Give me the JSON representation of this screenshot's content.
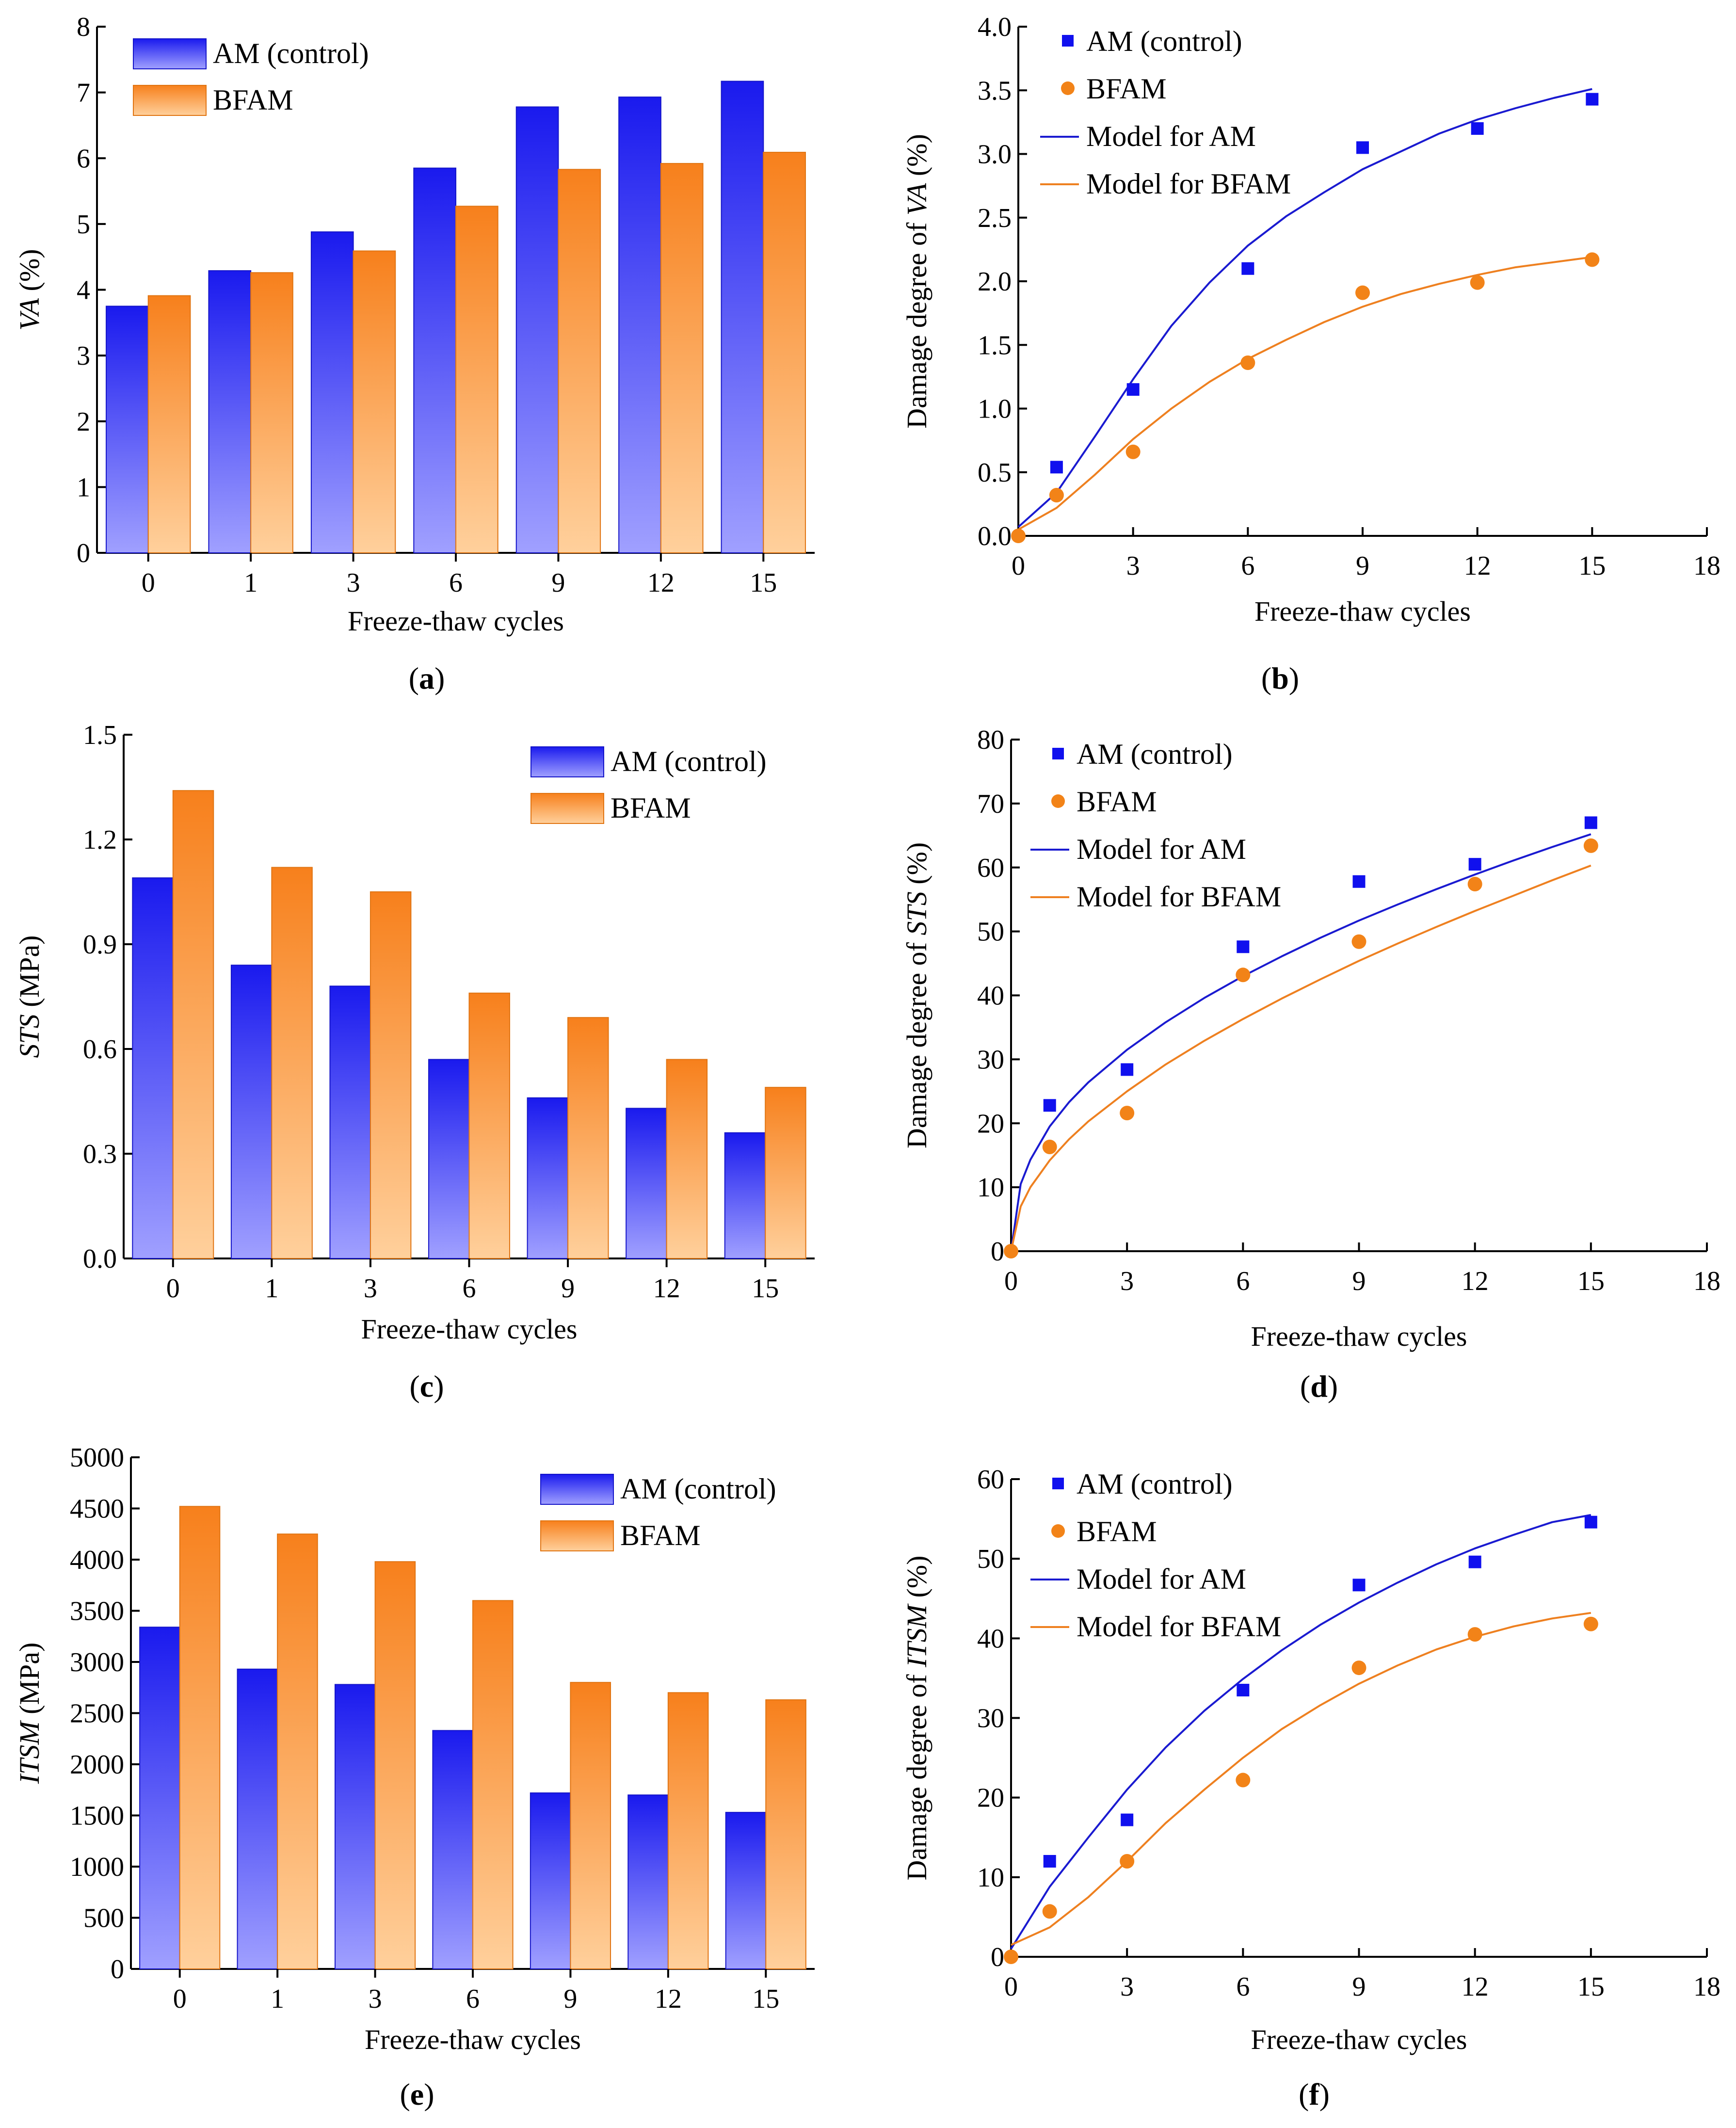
{
  "colors": {
    "am_top": "#1a1aee",
    "am_bottom": "#a0a0ff",
    "bfam_top": "#f7801c",
    "bfam_bottom": "#ffd09c",
    "am_marker": "#1010ee",
    "bfam_marker": "#f28318",
    "am_line": "#1a1ad0",
    "bfam_line": "#ee8020"
  },
  "chart_data": [
    {
      "id": "a",
      "type": "bar",
      "caption": "a",
      "categories": [
        "0",
        "1",
        "3",
        "6",
        "9",
        "12",
        "15"
      ],
      "series": [
        {
          "name": "AM (control)",
          "values": [
            3.75,
            4.29,
            4.88,
            5.85,
            6.78,
            6.93,
            7.17
          ]
        },
        {
          "name": "BFAM",
          "values": [
            3.91,
            4.26,
            4.59,
            5.27,
            5.83,
            5.92,
            6.09
          ]
        }
      ],
      "xlabel": "Freeze-thaw cycles",
      "ylabel_italic": "VA",
      "ylabel_rest": " (%)",
      "ylim": [
        0,
        8
      ],
      "yticks": [
        "0",
        "1",
        "2",
        "3",
        "4",
        "5",
        "6",
        "7",
        "8"
      ],
      "legend": "top-left"
    },
    {
      "id": "b",
      "type": "scatter",
      "caption": "b",
      "series": [
        {
          "name": "AM (control)",
          "x": [
            1,
            3,
            6,
            9,
            12,
            15
          ],
          "y": [
            0.54,
            1.15,
            2.1,
            3.05,
            3.2,
            3.43
          ]
        },
        {
          "name": "BFAM",
          "x": [
            0,
            1,
            3,
            6,
            9,
            12,
            15
          ],
          "y": [
            0.0,
            0.32,
            0.66,
            1.36,
            1.91,
            1.99,
            2.17
          ]
        }
      ],
      "models": [
        {
          "name": "Model for AM",
          "x": [
            0,
            1,
            2,
            3,
            4,
            5,
            6,
            7,
            8,
            9,
            10,
            11,
            12,
            13,
            14,
            15
          ],
          "y": [
            0.07,
            0.34,
            0.78,
            1.23,
            1.65,
            1.99,
            2.28,
            2.51,
            2.7,
            2.88,
            3.02,
            3.16,
            3.27,
            3.36,
            3.44,
            3.51
          ]
        },
        {
          "name": "Model for BFAM",
          "x": [
            0,
            1,
            2,
            3,
            4,
            5,
            6,
            7,
            8,
            9,
            10,
            11,
            12,
            13,
            14,
            15
          ],
          "y": [
            0.05,
            0.22,
            0.48,
            0.76,
            1.0,
            1.21,
            1.39,
            1.54,
            1.68,
            1.8,
            1.9,
            1.98,
            2.05,
            2.11,
            2.15,
            2.19
          ]
        }
      ],
      "xlabel": "Freeze-thaw cycles",
      "ylabel_prefix": "Damage degree of ",
      "ylabel_italic": "VA",
      "ylabel_rest": " (%)",
      "xlim": [
        0,
        18
      ],
      "xticks": [
        "0",
        "3",
        "6",
        "9",
        "12",
        "15",
        "18"
      ],
      "ylim": [
        0,
        4
      ],
      "yticks": [
        "0.0",
        "0.5",
        "1.0",
        "1.5",
        "2.0",
        "2.5",
        "3.0",
        "3.5",
        "4.0"
      ],
      "legend": "top-left"
    },
    {
      "id": "c",
      "type": "bar",
      "caption": "c",
      "categories": [
        "0",
        "1",
        "3",
        "6",
        "9",
        "12",
        "15"
      ],
      "series": [
        {
          "name": "AM (control)",
          "values": [
            1.09,
            0.84,
            0.78,
            0.57,
            0.46,
            0.43,
            0.36
          ]
        },
        {
          "name": "BFAM",
          "values": [
            1.34,
            1.12,
            1.05,
            0.76,
            0.69,
            0.57,
            0.49
          ]
        }
      ],
      "xlabel": "Freeze-thaw cycles",
      "ylabel_italic": "STS",
      "ylabel_rest": " (MPa)",
      "ylim": [
        0,
        1.5
      ],
      "yticks": [
        "0.0",
        "0.3",
        "0.6",
        "0.9",
        "1.2",
        "1.5"
      ],
      "legend": "top-right"
    },
    {
      "id": "d",
      "type": "scatter",
      "caption": "d",
      "series": [
        {
          "name": "AM (control)",
          "x": [
            1,
            3,
            6,
            9,
            12,
            15
          ],
          "y": [
            22.8,
            28.4,
            47.6,
            57.8,
            60.5,
            67.0
          ]
        },
        {
          "name": "BFAM",
          "x": [
            0,
            1,
            3,
            6,
            9,
            12,
            15
          ],
          "y": [
            0.0,
            16.3,
            21.6,
            43.2,
            48.4,
            57.4,
            63.4
          ]
        }
      ],
      "models": [
        {
          "name": "Model for AM",
          "x": [
            0,
            0.25,
            0.5,
            1,
            1.5,
            2,
            3,
            4,
            5,
            6,
            7,
            8,
            9,
            10,
            11,
            12,
            13,
            14,
            15
          ],
          "y": [
            0,
            10.5,
            14.3,
            19.5,
            23.3,
            26.4,
            31.5,
            35.8,
            39.6,
            43.0,
            46.1,
            49.0,
            51.7,
            54.2,
            56.6,
            58.9,
            61.1,
            63.2,
            65.2
          ]
        },
        {
          "name": "Model for BFAM",
          "x": [
            0,
            0.25,
            0.5,
            1,
            1.5,
            2,
            3,
            4,
            5,
            6,
            7,
            8,
            9,
            10,
            11,
            12,
            13,
            14,
            15
          ],
          "y": [
            0,
            7.0,
            10.0,
            14.2,
            17.5,
            20.3,
            25.0,
            29.2,
            32.9,
            36.3,
            39.5,
            42.5,
            45.4,
            48.1,
            50.7,
            53.2,
            55.6,
            58.0,
            60.3
          ]
        }
      ],
      "xlabel": "Freeze-thaw cycles",
      "ylabel_prefix": "Damage degree of ",
      "ylabel_italic": "STS",
      "ylabel_rest": " (%)",
      "xlim": [
        0,
        18
      ],
      "xticks": [
        "0",
        "3",
        "6",
        "9",
        "12",
        "15",
        "18"
      ],
      "ylim": [
        0,
        80
      ],
      "yticks": [
        "0",
        "10",
        "20",
        "30",
        "40",
        "50",
        "60",
        "70",
        "80"
      ],
      "legend": "top-left"
    },
    {
      "id": "e",
      "type": "bar",
      "caption": "e",
      "categories": [
        "0",
        "1",
        "3",
        "6",
        "9",
        "12",
        "15"
      ],
      "series": [
        {
          "name": "AM (control)",
          "values": [
            3340,
            2930,
            2780,
            2330,
            1720,
            1700,
            1530
          ]
        },
        {
          "name": "BFAM",
          "values": [
            4520,
            4250,
            3980,
            3600,
            2800,
            2700,
            2630
          ]
        }
      ],
      "xlabel": "Freeze-thaw cycles",
      "ylabel_italic": "ITSM",
      "ylabel_rest": " (MPa)",
      "ylim": [
        0,
        5000
      ],
      "yticks": [
        "0",
        "500",
        "1000",
        "1500",
        "2000",
        "2500",
        "3000",
        "3500",
        "4000",
        "4500",
        "5000"
      ],
      "legend": "top-right"
    },
    {
      "id": "f",
      "type": "scatter",
      "caption": "f",
      "series": [
        {
          "name": "AM (control)",
          "x": [
            1,
            3,
            6,
            9,
            12,
            15
          ],
          "y": [
            12.0,
            17.2,
            33.5,
            46.7,
            49.6,
            54.6
          ]
        },
        {
          "name": "BFAM",
          "x": [
            0,
            1,
            3,
            6,
            9,
            12,
            15
          ],
          "y": [
            0.0,
            5.7,
            12.0,
            22.2,
            36.3,
            40.5,
            41.8
          ]
        }
      ],
      "models": [
        {
          "name": "Model for AM",
          "x": [
            0,
            1,
            2,
            3,
            4,
            5,
            6,
            7,
            8,
            9,
            10,
            11,
            12,
            13,
            14,
            15
          ],
          "y": [
            1.0,
            8.8,
            15.0,
            21.0,
            26.3,
            30.9,
            34.9,
            38.5,
            41.7,
            44.5,
            47.0,
            49.3,
            51.3,
            53.0,
            54.6,
            55.5
          ]
        },
        {
          "name": "Model for BFAM",
          "x": [
            0,
            1,
            2,
            3,
            4,
            5,
            6,
            7,
            8,
            9,
            10,
            11,
            12,
            13,
            14,
            15
          ],
          "y": [
            1.5,
            3.7,
            7.5,
            12.0,
            16.8,
            21.0,
            25.0,
            28.6,
            31.6,
            34.3,
            36.6,
            38.6,
            40.2,
            41.5,
            42.5,
            43.2
          ]
        }
      ],
      "xlabel": "Freeze-thaw cycles",
      "ylabel_prefix": "Damage degree of ",
      "ylabel_italic": "ITSM",
      "ylabel_rest": " (%)",
      "xlim": [
        0,
        18
      ],
      "xticks": [
        "0",
        "3",
        "6",
        "9",
        "12",
        "15",
        "18"
      ],
      "ylim": [
        0,
        60
      ],
      "yticks": [
        "0",
        "10",
        "20",
        "30",
        "40",
        "50",
        "60"
      ],
      "legend": "top-left"
    }
  ]
}
